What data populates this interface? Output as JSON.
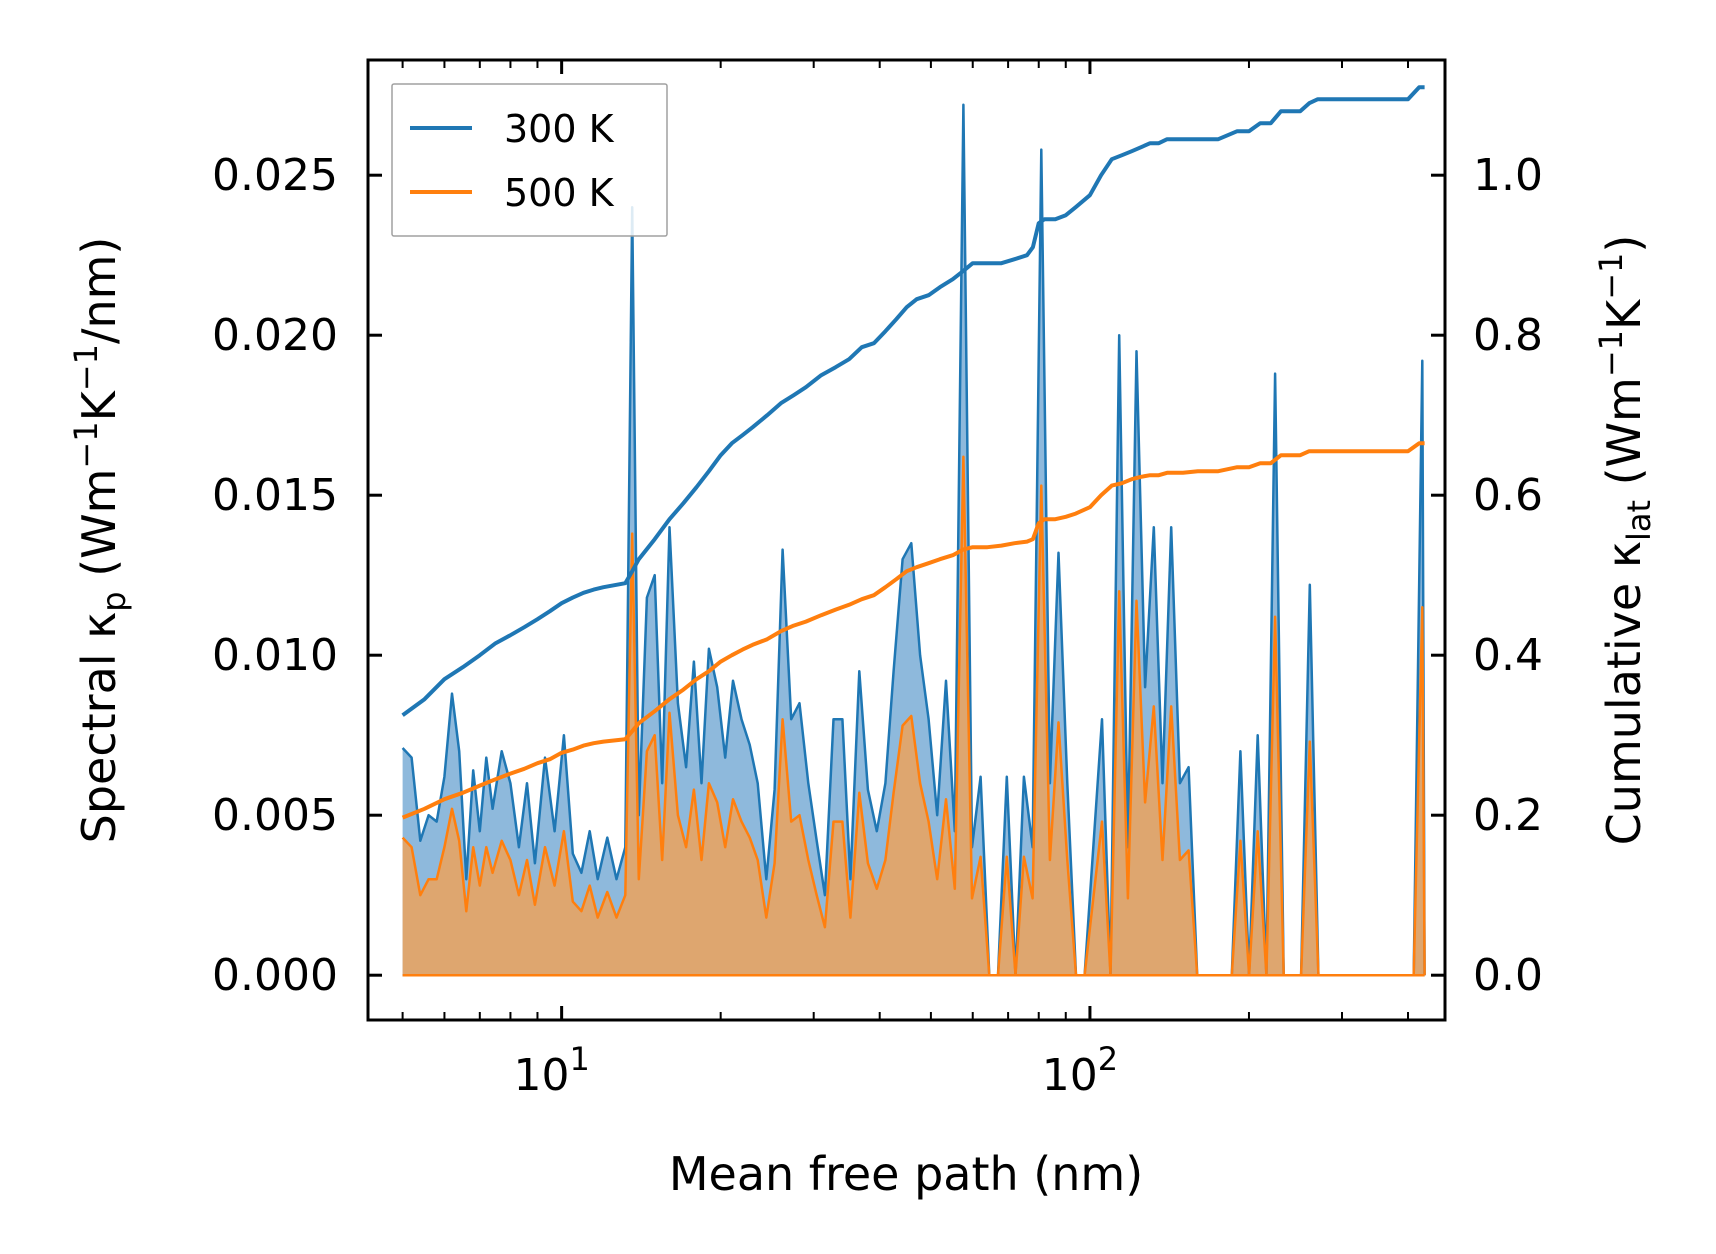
{
  "chart_data": {
    "type": "line",
    "title": "",
    "xlabel": "Mean free path (nm)",
    "ylabel_left_main": "Spectral κ",
    "ylabel_left_sub": "p",
    "ylabel_left_rest": " (Wm",
    "ylabel_left_sup1": "−1",
    "ylabel_left_mid": "K",
    "ylabel_left_sup2": "−1",
    "ylabel_left_end": "/nm)",
    "ylabel_right_main": "Cumulative κ",
    "ylabel_right_sub": "lat",
    "ylabel_right_rest": " (Wm",
    "ylabel_right_sup1": "−1",
    "ylabel_right_mid": "K",
    "ylabel_right_sup2": "−1",
    "ylabel_right_end": ")",
    "xscale": "log",
    "xlim": [
      4.3,
      470
    ],
    "ylim_left": [
      -0.0014,
      0.0286
    ],
    "ylim_right": [
      -0.056,
      1.144
    ],
    "x_major_ticks": [
      {
        "value": 10,
        "base": "10",
        "exp": "1"
      },
      {
        "value": 100,
        "base": "10",
        "exp": "2"
      }
    ],
    "x_minor_ticks": [
      5,
      6,
      7,
      8,
      9,
      20,
      30,
      40,
      50,
      60,
      70,
      80,
      90,
      200,
      300,
      400
    ],
    "y_left_ticks": [
      {
        "value": 0.0,
        "label": "0.000"
      },
      {
        "value": 0.005,
        "label": "0.005"
      },
      {
        "value": 0.01,
        "label": "0.010"
      },
      {
        "value": 0.015,
        "label": "0.015"
      },
      {
        "value": 0.02,
        "label": "0.020"
      },
      {
        "value": 0.025,
        "label": "0.025"
      }
    ],
    "y_right_ticks": [
      {
        "value": 0.0,
        "label": "0.0"
      },
      {
        "value": 0.2,
        "label": "0.2"
      },
      {
        "value": 0.4,
        "label": "0.4"
      },
      {
        "value": 0.6,
        "label": "0.6"
      },
      {
        "value": 0.8,
        "label": "0.8"
      },
      {
        "value": 1.0,
        "label": "1.0"
      }
    ],
    "legend": {
      "position": "top-left",
      "entries": [
        "300 K",
        "500 K"
      ]
    },
    "colors": {
      "c300": "#1f77b4",
      "c500": "#ff7f0e",
      "fill300": "#7aadd6",
      "fill500": "#f3a154",
      "overlap": "#c49a6c"
    },
    "series": [
      {
        "name": "300 K",
        "axis": "left",
        "kind": "spectral",
        "x": [
          5.0,
          5.2,
          5.4,
          5.6,
          5.8,
          6.0,
          6.2,
          6.4,
          6.6,
          6.8,
          7.0,
          7.2,
          7.4,
          7.7,
          8.0,
          8.3,
          8.6,
          8.9,
          9.3,
          9.7,
          10.1,
          10.5,
          10.9,
          11.3,
          11.7,
          12.2,
          12.7,
          13.2,
          13.6,
          14.0,
          14.5,
          15.0,
          15.5,
          16.0,
          16.6,
          17.2,
          17.8,
          18.4,
          19.0,
          19.7,
          20.4,
          21.1,
          21.9,
          22.7,
          23.5,
          24.4,
          25.3,
          26.2,
          27.2,
          28.2,
          29.3,
          30.4,
          31.5,
          32.7,
          34.0,
          35.2,
          36.6,
          38.0,
          39.5,
          41.0,
          42.5,
          44.2,
          45.9,
          47.7,
          49.5,
          51.4,
          53.4,
          55.5,
          57.6,
          59.8,
          62.1,
          64.5,
          67.0,
          69.6,
          72.3,
          75.0,
          77.9,
          80.9,
          84.0,
          87.2,
          90.6,
          94.1,
          97.7,
          101.5,
          105.4,
          109.4,
          113.6,
          118.0,
          122.5,
          127.2,
          132.1,
          137.2,
          142.5,
          148.0,
          153.7,
          159.6,
          165.7,
          172.1,
          178.7,
          185.6,
          192.7,
          200.1,
          207.8,
          215.8,
          224.1,
          232.7,
          241.7,
          251.0,
          260.7,
          270.7,
          281.1,
          291.9,
          303.1,
          314.8,
          326.9,
          339.5,
          352.5,
          366.1,
          380.2,
          394.8,
          410.0,
          425.8,
          430.0
        ],
        "y": [
          0.0071,
          0.0068,
          0.0042,
          0.005,
          0.0048,
          0.0062,
          0.0088,
          0.007,
          0.003,
          0.0064,
          0.0045,
          0.0068,
          0.0052,
          0.007,
          0.006,
          0.004,
          0.006,
          0.0035,
          0.0068,
          0.0045,
          0.0075,
          0.0038,
          0.0032,
          0.0045,
          0.003,
          0.0043,
          0.003,
          0.004,
          0.024,
          0.005,
          0.0118,
          0.0125,
          0.006,
          0.014,
          0.0085,
          0.0065,
          0.0098,
          0.006,
          0.0102,
          0.009,
          0.0068,
          0.0092,
          0.008,
          0.0072,
          0.006,
          0.003,
          0.0058,
          0.0133,
          0.008,
          0.0085,
          0.006,
          0.0042,
          0.0025,
          0.008,
          0.008,
          0.003,
          0.0095,
          0.0058,
          0.0045,
          0.006,
          0.0095,
          0.013,
          0.0135,
          0.01,
          0.008,
          0.005,
          0.0092,
          0.0045,
          0.0272,
          0.004,
          0.0062,
          0.0,
          0.0,
          0.0062,
          0.0,
          0.0062,
          0.004,
          0.0258,
          0.006,
          0.0132,
          0.006,
          0.0,
          0.0,
          0.004,
          0.008,
          0.0,
          0.02,
          0.004,
          0.0195,
          0.009,
          0.014,
          0.006,
          0.014,
          0.006,
          0.0065,
          0.0,
          0.0,
          0.0,
          0.0,
          0.0,
          0.007,
          0.0,
          0.0075,
          0.0,
          0.0188,
          0.0,
          0.0,
          0.0,
          0.0122,
          0.0,
          0.0,
          0.0,
          0.0,
          0.0,
          0.0,
          0.0,
          0.0,
          0.0,
          0.0,
          0.0,
          0.0,
          0.0192,
          0.0
        ]
      },
      {
        "name": "500 K",
        "axis": "left",
        "kind": "spectral",
        "x": [
          5.0,
          5.2,
          5.4,
          5.6,
          5.8,
          6.0,
          6.2,
          6.4,
          6.6,
          6.8,
          7.0,
          7.2,
          7.4,
          7.7,
          8.0,
          8.3,
          8.6,
          8.9,
          9.3,
          9.7,
          10.1,
          10.5,
          10.9,
          11.3,
          11.7,
          12.2,
          12.7,
          13.2,
          13.6,
          14.0,
          14.5,
          15.0,
          15.5,
          16.0,
          16.6,
          17.2,
          17.8,
          18.4,
          19.0,
          19.7,
          20.4,
          21.1,
          21.9,
          22.7,
          23.5,
          24.4,
          25.3,
          26.2,
          27.2,
          28.2,
          29.3,
          30.4,
          31.5,
          32.7,
          34.0,
          35.2,
          36.6,
          38.0,
          39.5,
          41.0,
          42.5,
          44.2,
          45.9,
          47.7,
          49.5,
          51.4,
          53.4,
          55.5,
          57.6,
          59.8,
          62.1,
          64.5,
          67.0,
          69.6,
          72.3,
          75.0,
          77.9,
          80.9,
          84.0,
          87.2,
          90.6,
          94.1,
          97.7,
          101.5,
          105.4,
          109.4,
          113.6,
          118.0,
          122.5,
          127.2,
          132.1,
          137.2,
          142.5,
          148.0,
          153.7,
          159.6,
          165.7,
          172.1,
          178.7,
          185.6,
          192.7,
          200.1,
          207.8,
          215.8,
          224.1,
          232.7,
          241.7,
          251.0,
          260.7,
          270.7,
          281.1,
          291.9,
          303.1,
          314.8,
          326.9,
          339.5,
          352.5,
          366.1,
          380.2,
          394.8,
          410.0,
          425.8,
          430.0
        ],
        "y": [
          0.0043,
          0.004,
          0.0025,
          0.003,
          0.003,
          0.004,
          0.0052,
          0.0042,
          0.002,
          0.004,
          0.0028,
          0.004,
          0.0032,
          0.0042,
          0.0036,
          0.0025,
          0.0036,
          0.0022,
          0.004,
          0.0028,
          0.0045,
          0.0023,
          0.002,
          0.0028,
          0.0018,
          0.0026,
          0.0018,
          0.0025,
          0.0138,
          0.003,
          0.007,
          0.0075,
          0.0036,
          0.0082,
          0.005,
          0.004,
          0.0058,
          0.0036,
          0.006,
          0.0054,
          0.004,
          0.0055,
          0.0048,
          0.0043,
          0.0036,
          0.0018,
          0.0035,
          0.008,
          0.0048,
          0.005,
          0.0036,
          0.0025,
          0.0015,
          0.0048,
          0.0048,
          0.0018,
          0.0057,
          0.0035,
          0.0027,
          0.0036,
          0.0057,
          0.0078,
          0.0081,
          0.006,
          0.0048,
          0.003,
          0.0055,
          0.0027,
          0.0162,
          0.0024,
          0.0037,
          0.0,
          0.0,
          0.0037,
          0.0,
          0.0037,
          0.0024,
          0.0153,
          0.0036,
          0.0079,
          0.0036,
          0.0,
          0.0,
          0.0024,
          0.0048,
          0.0,
          0.012,
          0.0024,
          0.0117,
          0.0054,
          0.0084,
          0.0036,
          0.0084,
          0.0036,
          0.0039,
          0.0,
          0.0,
          0.0,
          0.0,
          0.0,
          0.0042,
          0.0,
          0.0045,
          0.0,
          0.0112,
          0.0,
          0.0,
          0.0,
          0.0073,
          0.0,
          0.0,
          0.0,
          0.0,
          0.0,
          0.0,
          0.0,
          0.0,
          0.0,
          0.0,
          0.0,
          0.0,
          0.0115,
          0.0
        ]
      },
      {
        "name": "300 K",
        "axis": "right",
        "kind": "cumulative",
        "x": [
          5.0,
          5.5,
          6.0,
          6.5,
          7.0,
          7.5,
          8.0,
          8.5,
          9.0,
          9.5,
          10.0,
          10.5,
          11.0,
          11.5,
          12.0,
          13.2,
          13.6,
          14.0,
          15.0,
          16.0,
          17.0,
          18.0,
          19.0,
          20.0,
          21.0,
          22.0,
          23.0,
          24.5,
          26.0,
          27.5,
          29.0,
          31.0,
          33.0,
          35.0,
          37.0,
          39.0,
          41.0,
          43.0,
          45.0,
          47.0,
          49.5,
          52.0,
          55.0,
          57.5,
          60.0,
          64.0,
          68.0,
          72.0,
          76.0,
          78.0,
          80.0,
          82.0,
          86.0,
          90.0,
          94.0,
          100.0,
          105.0,
          110.0,
          115.0,
          120.0,
          125.0,
          130.0,
          135.0,
          140.0,
          150.0,
          160.0,
          175.0,
          190.0,
          200.0,
          210.0,
          220.0,
          230.0,
          250.0,
          260.0,
          270.0,
          300.0,
          350.0,
          400.0,
          420.0,
          430.0
        ],
        "y": [
          0.325,
          0.345,
          0.37,
          0.385,
          0.4,
          0.415,
          0.425,
          0.435,
          0.445,
          0.455,
          0.465,
          0.472,
          0.478,
          0.482,
          0.485,
          0.49,
          0.505,
          0.52,
          0.545,
          0.57,
          0.59,
          0.61,
          0.63,
          0.65,
          0.665,
          0.675,
          0.685,
          0.7,
          0.715,
          0.725,
          0.735,
          0.75,
          0.76,
          0.77,
          0.785,
          0.79,
          0.805,
          0.82,
          0.835,
          0.845,
          0.85,
          0.86,
          0.87,
          0.88,
          0.89,
          0.89,
          0.89,
          0.895,
          0.9,
          0.91,
          0.94,
          0.945,
          0.945,
          0.95,
          0.96,
          0.975,
          1.0,
          1.02,
          1.025,
          1.03,
          1.035,
          1.04,
          1.04,
          1.045,
          1.045,
          1.045,
          1.045,
          1.055,
          1.055,
          1.065,
          1.065,
          1.08,
          1.08,
          1.09,
          1.095,
          1.095,
          1.095,
          1.095,
          1.11,
          1.11
        ]
      },
      {
        "name": "500 K",
        "axis": "right",
        "kind": "cumulative",
        "x": [
          5.0,
          5.5,
          6.0,
          6.5,
          7.0,
          7.5,
          8.0,
          8.5,
          9.0,
          9.5,
          10.0,
          10.5,
          11.0,
          11.5,
          12.0,
          13.2,
          13.6,
          14.0,
          15.0,
          16.0,
          17.0,
          18.0,
          19.0,
          20.0,
          21.0,
          22.0,
          23.0,
          24.5,
          26.0,
          27.5,
          29.0,
          31.0,
          33.0,
          35.0,
          37.0,
          39.0,
          41.0,
          43.0,
          45.0,
          47.0,
          49.5,
          52.0,
          55.0,
          57.5,
          60.0,
          64.0,
          68.0,
          72.0,
          76.0,
          78.0,
          80.0,
          82.0,
          86.0,
          90.0,
          94.0,
          100.0,
          105.0,
          110.0,
          115.0,
          120.0,
          125.0,
          130.0,
          135.0,
          140.0,
          150.0,
          160.0,
          175.0,
          190.0,
          200.0,
          210.0,
          220.0,
          230.0,
          250.0,
          260.0,
          270.0,
          300.0,
          350.0,
          400.0,
          420.0,
          430.0
        ],
        "y": [
          0.197,
          0.208,
          0.22,
          0.228,
          0.237,
          0.245,
          0.252,
          0.258,
          0.265,
          0.27,
          0.278,
          0.282,
          0.287,
          0.29,
          0.292,
          0.295,
          0.305,
          0.315,
          0.33,
          0.345,
          0.357,
          0.37,
          0.38,
          0.392,
          0.4,
          0.407,
          0.413,
          0.42,
          0.43,
          0.437,
          0.442,
          0.45,
          0.457,
          0.463,
          0.47,
          0.475,
          0.485,
          0.495,
          0.505,
          0.51,
          0.515,
          0.52,
          0.525,
          0.532,
          0.535,
          0.535,
          0.537,
          0.54,
          0.542,
          0.545,
          0.565,
          0.57,
          0.57,
          0.573,
          0.577,
          0.585,
          0.6,
          0.612,
          0.615,
          0.62,
          0.623,
          0.625,
          0.625,
          0.628,
          0.628,
          0.63,
          0.63,
          0.635,
          0.635,
          0.64,
          0.64,
          0.65,
          0.65,
          0.655,
          0.655,
          0.655,
          0.655,
          0.655,
          0.665,
          0.665
        ]
      }
    ]
  }
}
